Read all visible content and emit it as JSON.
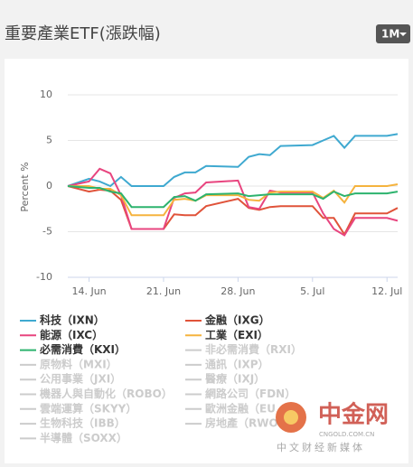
{
  "header": {
    "title": "重要產業ETF(漲跌幅)",
    "range_button": "1M"
  },
  "chart_data": {
    "type": "line",
    "y_label": "Percent %",
    "x": [
      "12. Jun",
      "14. Jun",
      "15. Jun",
      "16. Jun",
      "17. Jun",
      "18. Jun",
      "21. Jun",
      "22. Jun",
      "23. Jun",
      "24. Jun",
      "25. Jun",
      "28. Jun",
      "29. Jun",
      "30. Jun",
      "1. Jul",
      "2. Jul",
      "5. Jul",
      "6. Jul",
      "7. Jul",
      "8. Jul",
      "9. Jul",
      "12. Jul",
      "13. Jul"
    ],
    "xlim": [
      "12. Jun",
      "13. Jul"
    ],
    "xticks": [
      "14. Jun",
      "21. Jun",
      "28. Jun",
      "5. Jul",
      "12. Jul"
    ],
    "ylim": [
      -10,
      10
    ],
    "yticks": [
      -10,
      -5,
      0,
      5,
      10
    ],
    "grid": true,
    "series": [
      {
        "name": "科技（IXN）",
        "color": "#3fa9d0",
        "values": [
          0,
          0.8,
          0.5,
          0,
          1.0,
          0,
          0,
          1.0,
          1.5,
          1.5,
          2.2,
          2.1,
          3.2,
          3.5,
          3.4,
          4.4,
          4.5,
          5.0,
          5.5,
          4.2,
          5.5,
          5.5,
          5.7
        ]
      },
      {
        "name": "金融（IXG）",
        "color": "#e0533a",
        "values": [
          0,
          -0.6,
          -0.4,
          -0.5,
          -1.5,
          -4.7,
          -4.7,
          -3.1,
          -3.2,
          -3.2,
          -2.2,
          -1.4,
          -2.4,
          -2.6,
          -2.3,
          -2.2,
          -2.2,
          -3.5,
          -3.5,
          -5.3,
          -3.0,
          -3.0,
          -2.4
        ]
      },
      {
        "name": "能源（IXC）",
        "color": "#e8457f",
        "values": [
          0,
          0.5,
          1.9,
          1.4,
          -1.0,
          -4.7,
          -4.7,
          -1.3,
          -0.8,
          -0.7,
          0.4,
          0.6,
          -2.3,
          -2.5,
          -0.5,
          -0.7,
          -0.7,
          -3.0,
          -4.7,
          -5.4,
          -3.5,
          -3.5,
          -3.8
        ]
      },
      {
        "name": "工業（EXI）",
        "color": "#f5b33e",
        "values": [
          0,
          0,
          -0.3,
          -0.3,
          -1.0,
          -3.2,
          -3.2,
          -1.5,
          -1.4,
          -1.6,
          -1.0,
          -1.0,
          -1.5,
          -1.6,
          -0.7,
          -0.6,
          -0.6,
          -1.3,
          -0.5,
          -1.8,
          0,
          0,
          0.2
        ]
      },
      {
        "name": "必需消費（KXI）",
        "color": "#2db36e",
        "values": [
          0,
          -0.2,
          -0.2,
          -0.6,
          -0.8,
          -2.3,
          -2.3,
          -1.2,
          -1.1,
          -1.6,
          -0.9,
          -0.8,
          -1.1,
          -1.0,
          -0.9,
          -0.9,
          -0.9,
          -1.4,
          -0.6,
          -1.1,
          -0.8,
          -0.8,
          -0.6
        ]
      }
    ],
    "hidden_series": [
      "非必需消費（RXI）",
      "原物料（MXI）",
      "通訊（IXP）",
      "公用事業（JXI）",
      "醫療（IXJ）",
      "機器人與自動化（ROBO）",
      "網路公司（FDN）",
      "雲端運算（SKYY）",
      "歐洲金融（EU",
      "生物科技（IBB）",
      "房地產（RWO",
      "半導體（SOXX）"
    ]
  },
  "watermark": {
    "name": "中金网",
    "url": "CNGOLD.COM.CN",
    "slogan": "中文财经新媒体"
  }
}
